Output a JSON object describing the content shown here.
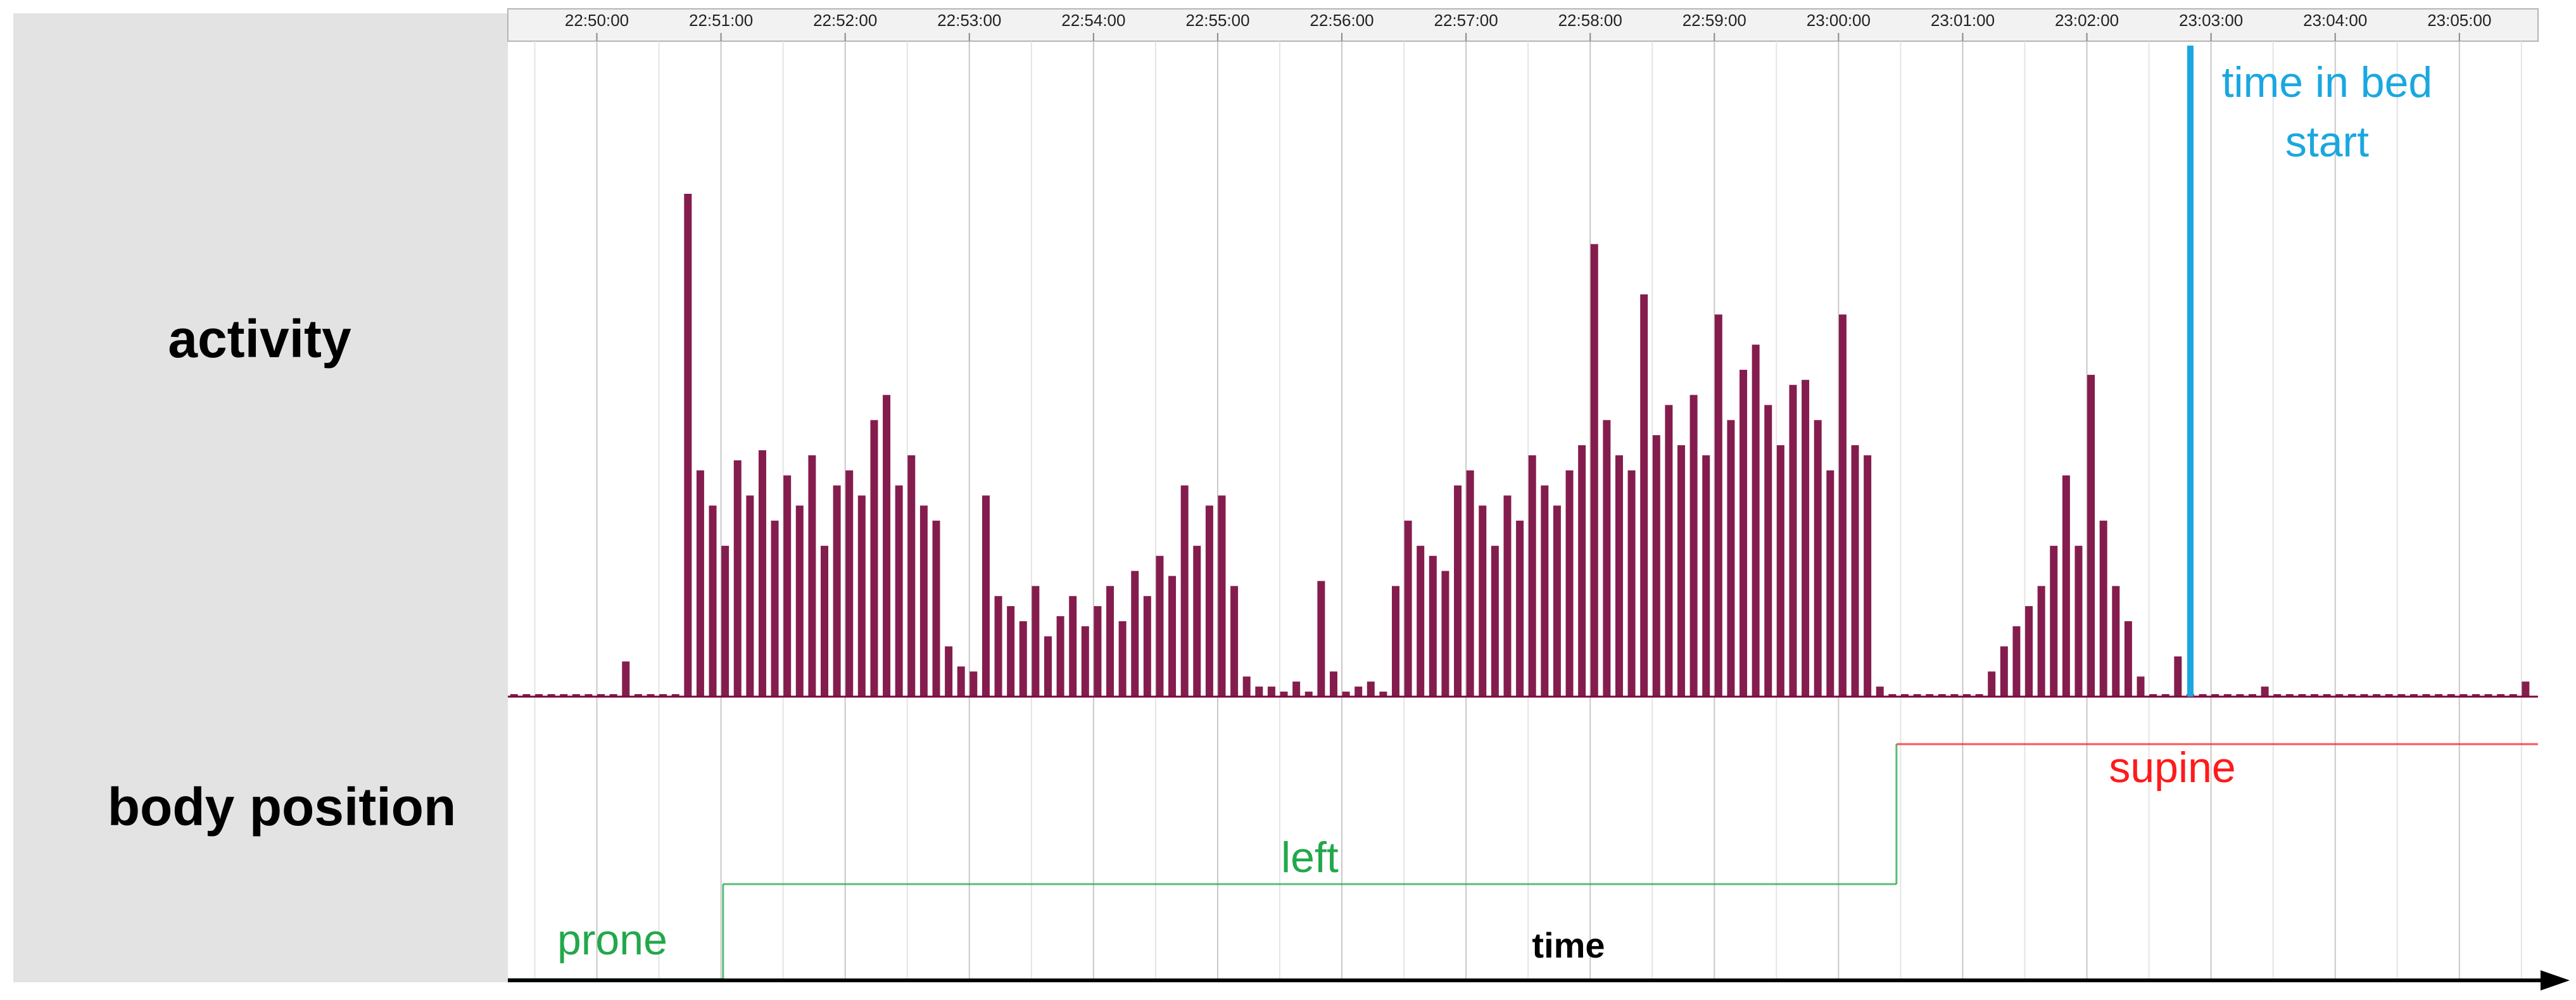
{
  "chart_data": {
    "type": "activity-hypnogram",
    "xlim": [
      "22:49:17",
      "23:05:38"
    ],
    "xticks": [
      "22:50:00",
      "22:51:00",
      "22:52:00",
      "22:53:00",
      "22:54:00",
      "22:55:00",
      "22:56:00",
      "22:57:00",
      "22:58:00",
      "22:59:00",
      "23:00:00",
      "23:01:00",
      "23:02:00",
      "23:03:00",
      "23:04:00",
      "23:05:00"
    ],
    "grid": true,
    "x_label": "time",
    "row_labels": [
      "activity",
      "body position"
    ],
    "activity": {
      "color": "#7a0a3e",
      "ylim": [
        0,
        100
      ],
      "x": [
        "22:49:20",
        "22:49:26",
        "22:49:32",
        "22:49:38",
        "22:49:44",
        "22:49:50",
        "22:49:56",
        "22:50:02",
        "22:50:08",
        "22:50:14",
        "22:50:20",
        "22:50:26",
        "22:50:32",
        "22:50:38",
        "22:50:44",
        "22:50:50",
        "22:50:56",
        "22:51:02",
        "22:51:08",
        "22:51:14",
        "22:51:20",
        "22:51:26",
        "22:51:32",
        "22:51:38",
        "22:51:44",
        "22:51:50",
        "22:51:56",
        "22:52:02",
        "22:52:08",
        "22:52:14",
        "22:52:20",
        "22:52:26",
        "22:52:32",
        "22:52:38",
        "22:52:44",
        "22:52:50",
        "22:52:56",
        "22:53:02",
        "22:53:08",
        "22:53:14",
        "22:53:20",
        "22:53:26",
        "22:53:32",
        "22:53:38",
        "22:53:44",
        "22:53:50",
        "22:53:56",
        "22:54:02",
        "22:54:08",
        "22:54:14",
        "22:54:20",
        "22:54:26",
        "22:54:32",
        "22:54:38",
        "22:54:44",
        "22:54:50",
        "22:54:56",
        "22:55:02",
        "22:55:08",
        "22:55:14",
        "22:55:20",
        "22:55:26",
        "22:55:32",
        "22:55:38",
        "22:55:44",
        "22:55:50",
        "22:55:56",
        "22:56:02",
        "22:56:08",
        "22:56:14",
        "22:56:20",
        "22:56:26",
        "22:56:32",
        "22:56:38",
        "22:56:44",
        "22:56:50",
        "22:56:56",
        "22:57:02",
        "22:57:08",
        "22:57:14",
        "22:57:20",
        "22:57:26",
        "22:57:32",
        "22:57:38",
        "22:57:44",
        "22:57:50",
        "22:57:56",
        "22:58:02",
        "22:58:08",
        "22:58:14",
        "22:58:20",
        "22:58:26",
        "22:58:32",
        "22:58:38",
        "22:58:44",
        "22:58:50",
        "22:58:56",
        "22:59:02",
        "22:59:08",
        "22:59:14",
        "22:59:20",
        "22:59:26",
        "22:59:32",
        "22:59:38",
        "22:59:44",
        "22:59:50",
        "22:59:56",
        "23:00:02",
        "23:00:08",
        "23:00:14",
        "23:00:20",
        "23:00:26",
        "23:00:32",
        "23:00:38",
        "23:00:44",
        "23:00:50",
        "23:00:56",
        "23:01:02",
        "23:01:08",
        "23:01:14",
        "23:01:20",
        "23:01:26",
        "23:01:32",
        "23:01:38",
        "23:01:44",
        "23:01:50",
        "23:01:56",
        "23:02:02",
        "23:02:08",
        "23:02:14",
        "23:02:20",
        "23:02:26",
        "23:02:32",
        "23:02:38",
        "23:02:44",
        "23:02:50",
        "23:02:56",
        "23:03:02",
        "23:03:08",
        "23:03:14",
        "23:03:20",
        "23:03:26",
        "23:03:32",
        "23:03:38",
        "23:03:44",
        "23:03:50",
        "23:03:56",
        "23:04:02",
        "23:04:08",
        "23:04:14",
        "23:04:20",
        "23:04:26",
        "23:04:32",
        "23:04:38",
        "23:04:44",
        "23:04:50",
        "23:04:56",
        "23:05:02",
        "23:05:08",
        "23:05:14",
        "23:05:20",
        "23:05:26",
        "23:05:32"
      ],
      "values": [
        0.5,
        0.5,
        0.5,
        0.5,
        0.5,
        0.5,
        0.5,
        0.5,
        0.5,
        7,
        0.5,
        0.5,
        0.5,
        0.5,
        100,
        45,
        38,
        30,
        47,
        40,
        49,
        35,
        44,
        38,
        48,
        30,
        42,
        45,
        40,
        55,
        60,
        42,
        48,
        38,
        35,
        10,
        6,
        5,
        40,
        20,
        18,
        15,
        22,
        12,
        16,
        20,
        14,
        18,
        22,
        15,
        25,
        20,
        28,
        24,
        42,
        30,
        38,
        40,
        22,
        4,
        2,
        2,
        1,
        3,
        1,
        23,
        5,
        1,
        2,
        3,
        1,
        22,
        35,
        30,
        28,
        25,
        42,
        45,
        38,
        30,
        40,
        35,
        48,
        42,
        38,
        45,
        50,
        90,
        55,
        48,
        45,
        80,
        52,
        58,
        50,
        60,
        48,
        76,
        55,
        65,
        70,
        58,
        50,
        62,
        63,
        55,
        45,
        76,
        50,
        48,
        2,
        0.5,
        0.5,
        0.5,
        0.5,
        0.5,
        0.5,
        0.5,
        0.5,
        5,
        10,
        14,
        18,
        22,
        30,
        44,
        30,
        64,
        35,
        22,
        15,
        4,
        0.5,
        0.5,
        8,
        0.5,
        0.5,
        0.5,
        0.5,
        0.5,
        0.5,
        2,
        0.5,
        0.5,
        0.5,
        0.5,
        0.5,
        0.5,
        0.5,
        0.5,
        0.5,
        0.5,
        0.5,
        0.5,
        0.5,
        0.5,
        0.5,
        0.5,
        0.5,
        0.5,
        0.5,
        0.5,
        3
      ]
    },
    "body_position": [
      {
        "name": "prone",
        "start": "22:49:17",
        "end": "22:51:01",
        "color": "#22a84a"
      },
      {
        "name": "left",
        "start": "22:51:01",
        "end": "23:00:28",
        "color": "#22a84a"
      },
      {
        "name": "supine",
        "start": "23:00:28",
        "end": "23:05:38",
        "color": "#ff1a1a"
      }
    ],
    "annotations": [
      {
        "text": [
          "time in bed",
          "start"
        ],
        "x": "23:02:50",
        "color": "#1aa7e0"
      }
    ]
  }
}
